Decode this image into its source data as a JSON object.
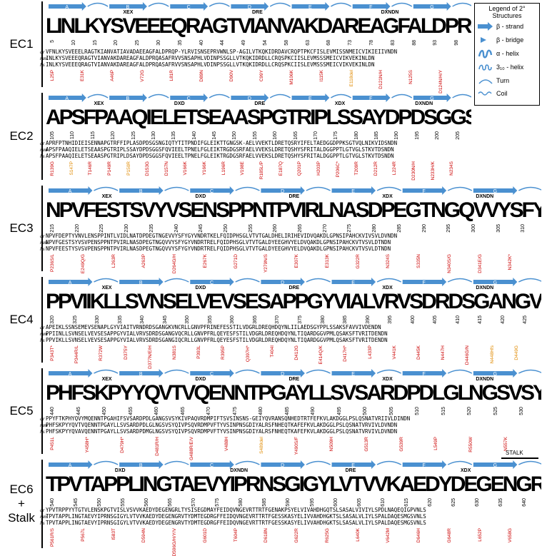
{
  "legend": {
    "title_line1": "Legend of 2°",
    "title_line2": "Structures",
    "items": [
      {
        "label": "β - strand",
        "icon": "strand-arrow-icon"
      },
      {
        "label": "β - bridge",
        "icon": "bridge-icon"
      },
      {
        "label": "α - helix",
        "icon": "alpha-helix-icon"
      },
      {
        "label": "3₁₀ - helix",
        "icon": "three-ten-helix-icon"
      },
      {
        "label": "Turn",
        "icon": "turn-icon"
      },
      {
        "label": "Coil",
        "icon": "coil-icon"
      }
    ]
  },
  "colors": {
    "strand": "#4a90d0",
    "mutation_red": "#cc0000",
    "mutation_orange": "#e08a00",
    "highlight_cyan": "#2aa7a7"
  },
  "species": [
    "dr",
    "mm",
    "hs"
  ],
  "stalk_label": "STALK",
  "panels": [
    {
      "label_lines": [
        "EC1"
      ],
      "logo": "LINLKYSVEEEQRAGTVIANVAKDAREAGFALDPRQASAFRVVSNSAPHLVDINPSSGLLVTKQKIDRDLLCRQSPKCIISLEVMSSSMEICVIKVEKINLDN",
      "numbers": [
        "5",
        "10",
        "15",
        "20",
        "25",
        "30",
        "35",
        "40",
        "44",
        "49",
        "54",
        "58",
        "63",
        "68",
        "73",
        "78",
        "83",
        "88",
        "93",
        "98"
      ],
      "motifs": [
        {
          "text": "XEX"
        },
        {
          "text": "DRE"
        },
        {
          "text": "DXNDN"
        }
      ],
      "seq": {
        "dr": "VFNLKYSVEEELRAGTKIANVATIAVADAEEAGFALDPRQP-YLRVISNSEPRVWNLSP-AGILVTKQKIDRDAVCRQPTPKCFISLEVMISSNMEICVIKIEIIVNDN",
        "mm": "INLKYSVEEEQRAGTVIANVAKDAREAGFALDPRQASAFRVVSNSAPHLVDINPSSGLLVTKQKIDRDLLCRQSPKCIISLEVMSSSMEICVIKVEKINLDN",
        "hs": "INLKYSVEEEQRAGTVIANVAKDAREAGFALDPRQASAFRVVSNSAPHLVDINPSSGLLVTKQKIDRDLLCRQSPKCIISLEVMSSSMEICVIKVEKINLDN"
      },
      "mutations": [
        {
          "text": "L25P",
          "color": "red"
        },
        {
          "text": "E31K",
          "color": "red"
        },
        {
          "text": "A46P",
          "color": "red"
        },
        {
          "text": "V72G",
          "color": "red"
        },
        {
          "text": "L81R",
          "color": "red"
        },
        {
          "text": "D89N",
          "color": "red"
        },
        {
          "text": "D90V",
          "color": "red"
        },
        {
          "text": "C99Y",
          "color": "red"
        },
        {
          "text": "M106K",
          "color": "red"
        },
        {
          "text": "I115K",
          "color": "red"
        },
        {
          "text": "E118del",
          "color": "orange"
        },
        {
          "text": "D121N/H",
          "color": "red"
        },
        {
          "text": "N125S",
          "color": "red"
        },
        {
          "text": "D124N/H/Y",
          "color": "red"
        }
      ]
    },
    {
      "label_lines": [
        "EC2"
      ],
      "logo": "APSFPAAQIELETSEAASPGTRIPLSSAYDPDSGGSFQVIEELTPNELFGLEIKTRGDGSRFAELVVEKSLDRETQSHYSFRITALDGGPPTLGTVGLSTKVTDSNDN",
      "numbers": [
        "105",
        "110",
        "115",
        "120",
        "125",
        "130",
        "135",
        "140",
        "145",
        "150",
        "155",
        "160",
        "165",
        "170",
        "175",
        "180",
        "185",
        "190",
        "195",
        "200",
        "205"
      ],
      "motifs": [
        {
          "text": "XEX"
        },
        {
          "text": "DXD"
        },
        {
          "text": "DRE"
        },
        {
          "text": "XDX"
        },
        {
          "text": "DXNDN"
        }
      ],
      "seq": {
        "dr": "APRFPTNHIDIEISENNAPGTRFFIPLASDPDSGSNGIQTYTITPNDIFGLEIKTTGNGSK-AELVVEKTLDRETQSRYIFELTAEDGGDPPKSGTVQLNIKVIDSNDN",
        "mm": "APSFPAAQIELETSEAASPGTRIPLSSAYDPDSGGSFQVIEELTPNELFGLEIKTRGDGSRFAELVVEKSLDRETQSHYSFRITALDGGPPTLGTVGLSTKVTDSNDN",
        "hs": "APSFPAAQIELETSEAASPGTRIPLDSAYDPDSGGSFQVIEELTPNELFGLEIKTRGDGSRFAELVVEKSLDRETQSHYSFRITALDGGPPTLGTVGLSTKVTDSNDN"
      },
      "mutations": [
        {
          "text": "R139G",
          "color": "red"
        },
        {
          "text": "S147P",
          "color": "orange"
        },
        {
          "text": "T146R",
          "color": "red"
        },
        {
          "text": "P149R",
          "color": "red"
        },
        {
          "text": "P150R",
          "color": "orange"
        },
        {
          "text": "D153G",
          "color": "red"
        },
        {
          "text": "D157N",
          "color": "red"
        },
        {
          "text": "V166K",
          "color": "red"
        },
        {
          "text": "Y166K",
          "color": "red"
        },
        {
          "text": "L196R",
          "color": "red"
        },
        {
          "text": "V198E",
          "color": "red"
        },
        {
          "text": "R185L/P",
          "color": "red"
        },
        {
          "text": "E187Q",
          "color": "red"
        },
        {
          "text": "Q201P",
          "color": "red"
        },
        {
          "text": "H203P",
          "color": "red"
        },
        {
          "text": "P206C*",
          "color": "red"
        },
        {
          "text": "T209R",
          "color": "red"
        },
        {
          "text": "D212R",
          "color": "red"
        },
        {
          "text": "L224R",
          "color": "red"
        },
        {
          "text": "D230N/H",
          "color": "red"
        },
        {
          "text": "N233H/K",
          "color": "red"
        },
        {
          "text": "N234S",
          "color": "red"
        }
      ]
    },
    {
      "label_lines": [
        "EC3"
      ],
      "logo": "NPVFESTSVYVSENSPPNTPVIRLNASDPEGTNGQVVYSFYGYVNDRTRELFQIDPHSGLVTVTGALDYEEGHVYELDVQAKDLGPNSIPAHCKVTVSVLDTNDN",
      "numbers": [
        "215",
        "220",
        "225",
        "230",
        "235",
        "240",
        "245",
        "250",
        "255",
        "260",
        "265",
        "270",
        "275",
        "280",
        "285",
        "290",
        "295",
        "300",
        "305",
        "310"
      ],
      "motifs": [
        {
          "text": "XEX"
        },
        {
          "text": "DXD"
        },
        {
          "text": "DRE"
        },
        {
          "text": "XDX"
        },
        {
          "text": "DXNDN"
        }
      ],
      "seq": {
        "dr": "NPVFDEPTYVNVLENSPPINTLVIDLNATDPDEGTNGEVVYSFYGYVNDRTKELFQIDPHSGLVTVTGALDHELIRIHEVIDVQAKDLGPNSIPAHCKVIVSVLDVNDN",
        "mm": "NPVFGESTSYVSVPENSPPNTPVIRLNASDPEGTNGQVVYSFYGYVNDRTRELFQIDPHSGLVTVTGALDYEEGHVYELDVQAKDLGPNSIPAHCKVTVSVLDTNDN",
        "hs": "NPVFEESTYSVSVPENSPPNTPVIRLNASDPEGTNGQVVYSFYGYVNDRTRELFQIDPHSGLVTVTGALDYEEGHVYELDVQAKDLGPNSIPAHCKVTVSVLDTNDN"
      },
      "mutations": [
        {
          "text": "P236S/L",
          "color": "red"
        },
        {
          "text": "E249Q/G",
          "color": "red"
        },
        {
          "text": "L263R",
          "color": "red"
        },
        {
          "text": "A263P",
          "color": "red"
        },
        {
          "text": "D264G/H",
          "color": "red"
        },
        {
          "text": "E267K",
          "color": "red"
        },
        {
          "text": "G271D",
          "color": "red"
        },
        {
          "text": "Y279N/S",
          "color": "red"
        },
        {
          "text": "E307K",
          "color": "red"
        },
        {
          "text": "E313K",
          "color": "red"
        },
        {
          "text": "G322R",
          "color": "red"
        },
        {
          "text": "N324S",
          "color": "red"
        },
        {
          "text": "S335N",
          "color": "red"
        },
        {
          "text": "N340S/G",
          "color": "red"
        },
        {
          "text": "D341E/G",
          "color": "red"
        },
        {
          "text": "N342K*",
          "color": "red"
        }
      ]
    },
    {
      "label_lines": [
        "EC4"
      ],
      "logo": "PPVIIKLLSVNSELVEVSESAPPGYVIALVRVSDRDSGANGVQCRLLGNVPFRLQEYESFSTILVDGRLDREQHDQYNLTIQARDGGVPMLQSAKSFTVRITDENDN",
      "numbers": [
        "320",
        "325",
        "330",
        "335",
        "340",
        "345",
        "350",
        "355",
        "360",
        "365",
        "370",
        "375",
        "380",
        "385",
        "390",
        "395",
        "400",
        "405",
        "410",
        "415",
        "420",
        "425"
      ],
      "motifs": [
        {
          "text": "XEX"
        },
        {
          "text": "DXD"
        },
        {
          "text": "DRE"
        },
        {
          "text": "XDX"
        },
        {
          "text": "DXNDN"
        }
      ],
      "seq": {
        "dr": "APEIKLSSNSEMEVSENAPLGYVIAITVRNDRDSGANGKVNCRLLGNVPFRINEFESSTILVDGRLDREQHDQYNLIILAEDSGYPPLSSAKSFAVVIVDENDN",
        "mm": "PPIINLLSVNSELVEVSESAPPGYVIALVRVSDRDSGANGVQCRLLGNVPFRLQEYESFSTILVDGRLDREQHDQYNLTIQARDGGVPMLQSAKSFTVRITDENDN",
        "hs": "PPVIKLLSVNSELVEVSESAPPGYVIALVRVSDRDSGANGIQCRLLGNVPFRLQEYESFSTILVDGRLDREQHDQYNLTIQARDGGVPMLQSAKSFTVRITDENDN"
      },
      "mutations": [
        {
          "text": "P343T*",
          "color": "red"
        },
        {
          "text": "P344R/L",
          "color": "red"
        },
        {
          "text": "R372W",
          "color": "red"
        },
        {
          "text": "D375Y",
          "color": "red"
        },
        {
          "text": "D377N/E/H",
          "color": "red"
        },
        {
          "text": "N381S",
          "color": "red"
        },
        {
          "text": "P393L",
          "color": "red"
        },
        {
          "text": "R395P",
          "color": "red"
        },
        {
          "text": "Q397H*",
          "color": "red"
        },
        {
          "text": "T404I",
          "color": "red"
        },
        {
          "text": "D412G",
          "color": "red"
        },
        {
          "text": "E414Q/K",
          "color": "red"
        },
        {
          "text": "D417H*",
          "color": "red"
        },
        {
          "text": "L433P",
          "color": "red"
        },
        {
          "text": "V441K",
          "color": "red"
        },
        {
          "text": "D445K",
          "color": "red"
        },
        {
          "text": "N447H",
          "color": "red"
        },
        {
          "text": "D446G/N",
          "color": "red"
        },
        {
          "text": "N448Hfs",
          "color": "orange"
        },
        {
          "text": "D449G",
          "color": "orange"
        }
      ]
    },
    {
      "label_lines": [
        "EC5"
      ],
      "logo": "PHFSKPYYQVTVQENNTPGAYLLSVSARDPDLGLNGSVSYQIVPSQVRDMPVFTYVSINPNSGDIYALRSFNHEQTKAFEFKVLAKDGGLPSLQSNATVRVIVLDVNDN",
      "numbers": [
        "440",
        "445",
        "450",
        "455",
        "460",
        "465",
        "470",
        "475",
        "480",
        "485",
        "490",
        "495",
        "500",
        "505",
        "510",
        "515",
        "520",
        "525",
        "530"
      ],
      "motifs": [
        {
          "text": "XEX"
        },
        {
          "text": "DXD"
        },
        {
          "text": "DRE"
        },
        {
          "text": "XDX"
        },
        {
          "text": "DXNDN"
        }
      ],
      "seq": {
        "dr": "PPYFTKPHYQVYMQENNTPGAHIFSVSARDPDLGANGSVSYKIVPAQVRDMPIFTSVSINSNS-GEIYQVRANSQNHEDTRTFEFKVLAKDGGLPSLQSNATVRIIVLDINDN",
        "mm": "PHFSKPYYQVTVQENNTPGAYLLSVSARDPDLGLNGSVSYQIVPSQVRDMPVFTYVSINPNSGDIYALRSFNHEQTKAFEFKVLAKDGGLPSLQSNATVRVIVLDVNDN",
        "hs": "PHFSKPYYQVAVQENNTPGAYLLSVSARDPDMGLNGSVSYQIVPSQVRDMPVFTYVSINPNSGDIYALRSFNHEQTKAFEFKVLAKDGGLPSLQSNATVRVIVLDVNDN"
      },
      "mutations": [
        {
          "text": "P451L",
          "color": "red"
        },
        {
          "text": "Y458H*",
          "color": "red"
        },
        {
          "text": "D479H*",
          "color": "red"
        },
        {
          "text": "D481R/H",
          "color": "red"
        },
        {
          "text": "G488R/E/V",
          "color": "red"
        },
        {
          "text": "V488H",
          "color": "red"
        },
        {
          "text": "S489del",
          "color": "orange"
        },
        {
          "text": "Y490S/F",
          "color": "red"
        },
        {
          "text": "N509H",
          "color": "red"
        },
        {
          "text": "G513R",
          "color": "red"
        },
        {
          "text": "G539R",
          "color": "red"
        },
        {
          "text": "L549P",
          "color": "red"
        },
        {
          "text": "R550W",
          "color": "red"
        },
        {
          "text": "N557K",
          "color": "red"
        }
      ]
    },
    {
      "label_lines": [
        "EC6",
        "+",
        "Stalk"
      ],
      "logo": "TPVTAPPLINGTAEVYIPRNSGIGYLVTVVKAEDYDEGENGRVTYDMTEGDRGFFEIDQVNGEVRTTRTFGESSKASYELIVVAHDHGKTSLSASALVLIYLSPALDAQESMGSVNLS",
      "numbers": [
        "540",
        "545",
        "550",
        "555",
        "560",
        "565",
        "570",
        "575",
        "580",
        "585",
        "590",
        "595",
        "600",
        "605",
        "610",
        "615",
        "620",
        "625",
        "630",
        "635",
        "640"
      ],
      "motifs": [
        {
          "text": "DXD"
        },
        {
          "text": "DXNDN"
        },
        {
          "text": "DRE"
        },
        {
          "text": "XDX"
        }
      ],
      "seq": {
        "dr": "YPVTRPPYYTGTVLENSKPGTVISLVSVVKAEDYDEGENGRLTYSISEGDMAYFEIDQVNGEVRTTRTFGENAKPSYELVIVAHDHGQTSLSASALVIVIYLSPDLNAQEQIGPVNLS",
        "mm": "TPVTAPPLINGTAEVYIPRNSGIGYLVTVVKAEDYDEGENGRVTYDMTEGDRGFFEIDQVNGEVRTTRTFGESSKASYELIVVAHDHGKTSLSASALVLIYLSPALDAQESMGSVNLS",
        "hs": "TPVTAPPLINGTAEVYIPRNSGIGYLVTVVKAEDYDEGENGRVTYDMTEGDRGFFEIDQVNGEVRTTRTFGESSKASYELIVVAHDHGKTSLSASALVLIYLSPALDAQESMGSVNLS"
      },
      "mutations": [
        {
          "text": "P561R/S",
          "color": "red"
        },
        {
          "text": "P567L",
          "color": "red"
        },
        {
          "text": "I583T",
          "color": "red"
        },
        {
          "text": "D594N",
          "color": "red"
        },
        {
          "text": "D596G/H/Y/V",
          "color": "red"
        },
        {
          "text": "G601D",
          "color": "red"
        },
        {
          "text": "T604P",
          "color": "red"
        },
        {
          "text": "D618N",
          "color": "red"
        },
        {
          "text": "G622R",
          "color": "red"
        },
        {
          "text": "R625G",
          "color": "red"
        },
        {
          "text": "L640K",
          "color": "red"
        },
        {
          "text": "V642M",
          "color": "red"
        },
        {
          "text": "D646H",
          "color": "red"
        },
        {
          "text": "G648R",
          "color": "red"
        },
        {
          "text": "L652P",
          "color": "red"
        },
        {
          "text": "V658G",
          "color": "red"
        }
      ]
    }
  ]
}
